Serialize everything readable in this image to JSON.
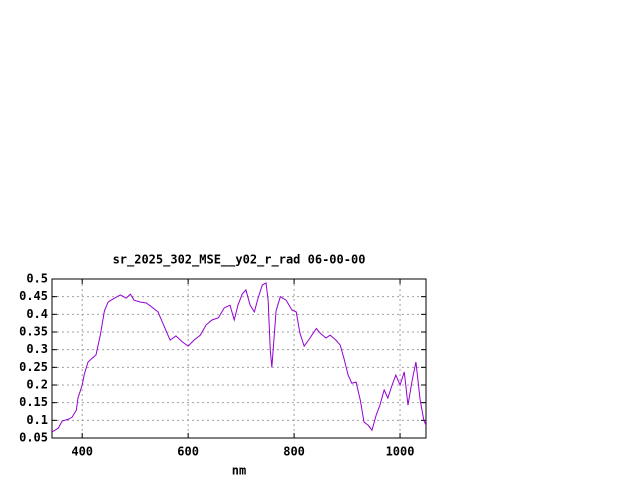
{
  "chart_data": {
    "type": "line",
    "title": "sr_2025_302_MSE__y02_r_rad 06-00-00",
    "x_label": "nm",
    "xlim": [
      343,
      1049
    ],
    "xticks": [
      400,
      600,
      800,
      1000
    ],
    "ylim": [
      0.05,
      0.5
    ],
    "yticks": [
      0.05,
      0.1,
      0.15,
      0.2,
      0.25,
      0.3,
      0.35,
      0.4,
      0.45,
      0.5
    ],
    "grid": true,
    "color": "#9400d3",
    "x": [
      343,
      355,
      362,
      374,
      381,
      389,
      392,
      400,
      404,
      411,
      419,
      426,
      434,
      442,
      449,
      460,
      472,
      483,
      491,
      498,
      509,
      521,
      532,
      543,
      555,
      566,
      577,
      589,
      600,
      611,
      623,
      634,
      645,
      657,
      668,
      679,
      687,
      694,
      702,
      709,
      717,
      725,
      732,
      740,
      747,
      751,
      755,
      758,
      766,
      774,
      785,
      796,
      804,
      811,
      819,
      830,
      842,
      849,
      860,
      868,
      879,
      887,
      894,
      902,
      909,
      917,
      925,
      932,
      940,
      947,
      955,
      962,
      970,
      977,
      985,
      992,
      1000,
      1008,
      1015,
      1023,
      1030,
      1038,
      1045,
      1049
    ],
    "values": [
      0.067,
      0.078,
      0.098,
      0.103,
      0.109,
      0.129,
      0.163,
      0.2,
      0.23,
      0.265,
      0.276,
      0.285,
      0.34,
      0.41,
      0.435,
      0.445,
      0.455,
      0.446,
      0.457,
      0.44,
      0.435,
      0.432,
      0.42,
      0.407,
      0.365,
      0.327,
      0.339,
      0.322,
      0.31,
      0.327,
      0.341,
      0.37,
      0.384,
      0.39,
      0.418,
      0.426,
      0.384,
      0.426,
      0.457,
      0.469,
      0.426,
      0.407,
      0.446,
      0.483,
      0.489,
      0.44,
      0.3,
      0.25,
      0.41,
      0.45,
      0.44,
      0.412,
      0.407,
      0.347,
      0.31,
      0.333,
      0.36,
      0.347,
      0.333,
      0.341,
      0.327,
      0.313,
      0.276,
      0.228,
      0.205,
      0.208,
      0.157,
      0.095,
      0.086,
      0.072,
      0.115,
      0.143,
      0.186,
      0.163,
      0.2,
      0.228,
      0.2,
      0.237,
      0.143,
      0.214,
      0.265,
      0.157,
      0.1,
      0.086
    ]
  }
}
